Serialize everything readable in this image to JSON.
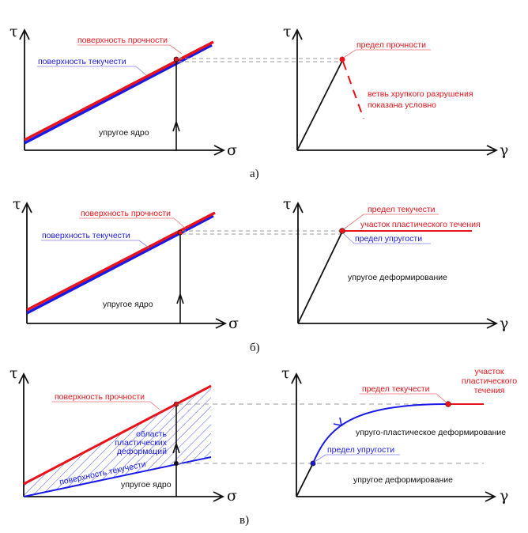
{
  "symbols": {
    "tau": "τ",
    "sigma": "σ",
    "gamma": "γ"
  },
  "colors": {
    "strength": "#e8141b",
    "yield": "#1a1ae6",
    "axis": "#111111",
    "guide": "#999999",
    "hatch": "#4a5ae8"
  },
  "panel_a": {
    "caption": "а)",
    "strength_surface": "поверхность прочности",
    "yield_surface": "поверхность текучести",
    "elastic_core": "упругое ядро",
    "ultimate_strength": "предел прочности",
    "brittle_branch_1": "ветвь хрупкого разрушения",
    "brittle_branch_2": "показана условно"
  },
  "panel_b": {
    "caption": "б)",
    "strength_surface": "поверхность прочности",
    "yield_surface": "поверхность текучести",
    "elastic_core": "упругое ядро",
    "yield_point": "предел текучести",
    "plastic_flow": "участок пластического течения",
    "elastic_limit": "предел упругости",
    "elastic_deformation": "упругое деформирование"
  },
  "panel_c": {
    "caption": "в)",
    "strength_surface": "поверхность прочности",
    "yield_surface": "поверхность текучести",
    "elastic_core": "упругое ядро",
    "plastic_region_1": "область",
    "plastic_region_2": "пластических",
    "plastic_region_3": "деформаций",
    "yield_point": "предел текучести",
    "plastic_flow_1": "участок",
    "plastic_flow_2": "пластического",
    "plastic_flow_3": "течения",
    "elastoplastic": "упруго-пластическое деформирование",
    "elastic_limit": "предел упругости",
    "elastic_deformation": "упругое деформирование"
  }
}
